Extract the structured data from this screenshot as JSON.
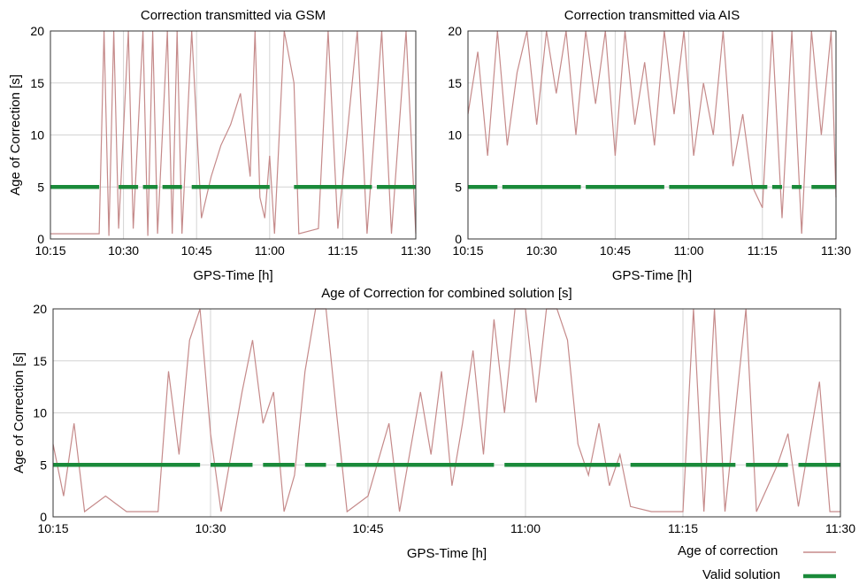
{
  "chart_data": [
    {
      "id": "gsm",
      "type": "line",
      "title": "Correction transmitted via GSM",
      "xlabel": "GPS-Time [h]",
      "ylabel": "Age of Correction [s]",
      "xticks": [
        "10:15",
        "10:30",
        "10:45",
        "11:00",
        "11:15",
        "11:30"
      ],
      "yticks": [
        0,
        5,
        10,
        15,
        20
      ],
      "ylim": [
        0,
        20
      ],
      "xlim": [
        "10:15",
        "11:30"
      ],
      "grid": true,
      "series": [
        {
          "name": "Age of correction",
          "color": "#c58a8a",
          "points": [
            [
              "10:15",
              0.5
            ],
            [
              "10:20",
              0.5
            ],
            [
              "10:25",
              0.5
            ],
            [
              "10:26",
              20
            ],
            [
              "10:27",
              0.3
            ],
            [
              "10:28",
              20
            ],
            [
              "10:29",
              1
            ],
            [
              "10:31",
              20
            ],
            [
              "10:32",
              1
            ],
            [
              "10:34",
              20
            ],
            [
              "10:35",
              0.3
            ],
            [
              "10:36",
              20
            ],
            [
              "10:37",
              0.5
            ],
            [
              "10:39",
              20
            ],
            [
              "10:40",
              0.5
            ],
            [
              "10:41",
              20
            ],
            [
              "10:42",
              0.5
            ],
            [
              "10:44",
              20
            ],
            [
              "10:46",
              2
            ],
            [
              "10:48",
              6
            ],
            [
              "10:50",
              9
            ],
            [
              "10:52",
              11
            ],
            [
              "10:54",
              14
            ],
            [
              "10:55",
              10
            ],
            [
              "10:56",
              6
            ],
            [
              "10:57",
              20
            ],
            [
              "10:58",
              4
            ],
            [
              "10:59",
              2
            ],
            [
              "11:00",
              8
            ],
            [
              "11:01",
              0.5
            ],
            [
              "11:03",
              20
            ],
            [
              "11:05",
              15
            ],
            [
              "11:06",
              0.5
            ],
            [
              "11:10",
              1
            ],
            [
              "11:12",
              20
            ],
            [
              "11:14",
              1
            ],
            [
              "11:18",
              20
            ],
            [
              "11:20",
              0.5
            ],
            [
              "11:23",
              20
            ],
            [
              "11:25",
              0.5
            ],
            [
              "11:28",
              20
            ],
            [
              "11:30",
              0.5
            ]
          ]
        },
        {
          "name": "Valid solution",
          "color": "#1a8a3a",
          "value": 5,
          "valid_ranges": [
            [
              "10:15",
              "10:25"
            ],
            [
              "10:29",
              "10:33"
            ],
            [
              "10:34",
              "10:37"
            ],
            [
              "10:38",
              "10:42"
            ],
            [
              "10:44",
              "11:00"
            ],
            [
              "11:05",
              "11:21"
            ],
            [
              "11:22",
              "11:30"
            ]
          ]
        }
      ]
    },
    {
      "id": "ais",
      "type": "line",
      "title": "Correction transmitted via AIS",
      "xlabel": "GPS-Time [h]",
      "ylabel": "",
      "xticks": [
        "10:15",
        "10:30",
        "10:45",
        "11:00",
        "11:15",
        "11:30"
      ],
      "yticks": [
        0,
        5,
        10,
        15,
        20
      ],
      "ylim": [
        0,
        20
      ],
      "xlim": [
        "10:15",
        "11:30"
      ],
      "grid": true,
      "series": [
        {
          "name": "Age of correction",
          "color": "#c58a8a",
          "points": [
            [
              "10:15",
              12
            ],
            [
              "10:17",
              18
            ],
            [
              "10:19",
              8
            ],
            [
              "10:21",
              20
            ],
            [
              "10:23",
              9
            ],
            [
              "10:25",
              16
            ],
            [
              "10:27",
              20
            ],
            [
              "10:29",
              11
            ],
            [
              "10:31",
              20
            ],
            [
              "10:33",
              14
            ],
            [
              "10:35",
              20
            ],
            [
              "10:37",
              10
            ],
            [
              "10:39",
              20
            ],
            [
              "10:41",
              13
            ],
            [
              "10:43",
              20
            ],
            [
              "10:45",
              8
            ],
            [
              "10:47",
              20
            ],
            [
              "10:49",
              11
            ],
            [
              "10:51",
              17
            ],
            [
              "10:53",
              9
            ],
            [
              "10:55",
              20
            ],
            [
              "10:57",
              12
            ],
            [
              "10:59",
              20
            ],
            [
              "11:01",
              8
            ],
            [
              "11:03",
              15
            ],
            [
              "11:05",
              10
            ],
            [
              "11:07",
              20
            ],
            [
              "11:09",
              7
            ],
            [
              "11:11",
              12
            ],
            [
              "11:13",
              5
            ],
            [
              "11:15",
              3
            ],
            [
              "11:17",
              20
            ],
            [
              "11:19",
              2
            ],
            [
              "11:21",
              20
            ],
            [
              "11:23",
              0.5
            ],
            [
              "11:25",
              20
            ],
            [
              "11:27",
              10
            ],
            [
              "11:29",
              20
            ],
            [
              "11:30",
              4
            ]
          ]
        },
        {
          "name": "Valid solution",
          "color": "#1a8a3a",
          "value": 5,
          "valid_ranges": [
            [
              "10:15",
              "10:21"
            ],
            [
              "10:22",
              "10:38"
            ],
            [
              "10:39",
              "10:55"
            ],
            [
              "10:56",
              "11:16"
            ],
            [
              "11:17",
              "11:19"
            ],
            [
              "11:21",
              "11:23"
            ],
            [
              "11:25",
              "11:30"
            ]
          ]
        }
      ]
    },
    {
      "id": "combined",
      "type": "line",
      "title": "Age of Correction for combined solution [s]",
      "xlabel": "GPS-Time [h]",
      "ylabel": "Age of Correction [s]",
      "xticks": [
        "10:15",
        "10:30",
        "10:45",
        "11:00",
        "11:15",
        "11:30"
      ],
      "yticks": [
        0,
        5,
        10,
        15,
        20
      ],
      "ylim": [
        0,
        20
      ],
      "xlim": [
        "10:15",
        "11:30"
      ],
      "grid": true,
      "series": [
        {
          "name": "Age of correction",
          "color": "#c58a8a",
          "points": [
            [
              "10:15",
              7
            ],
            [
              "10:16",
              2
            ],
            [
              "10:17",
              9
            ],
            [
              "10:18",
              0.5
            ],
            [
              "10:20",
              2
            ],
            [
              "10:22",
              0.5
            ],
            [
              "10:25",
              0.5
            ],
            [
              "10:26",
              14
            ],
            [
              "10:27",
              6
            ],
            [
              "10:28",
              17
            ],
            [
              "10:29",
              20
            ],
            [
              "10:30",
              8
            ],
            [
              "10:31",
              0.5
            ],
            [
              "10:33",
              12
            ],
            [
              "10:34",
              17
            ],
            [
              "10:35",
              9
            ],
            [
              "10:36",
              12
            ],
            [
              "10:37",
              0.5
            ],
            [
              "10:38",
              4
            ],
            [
              "10:39",
              14
            ],
            [
              "10:40",
              20
            ],
            [
              "10:41",
              20
            ],
            [
              "10:42",
              10
            ],
            [
              "10:43",
              0.5
            ],
            [
              "10:45",
              2
            ],
            [
              "10:47",
              9
            ],
            [
              "10:48",
              0.5
            ],
            [
              "10:50",
              12
            ],
            [
              "10:51",
              6
            ],
            [
              "10:52",
              14
            ],
            [
              "10:53",
              3
            ],
            [
              "10:54",
              9
            ],
            [
              "10:55",
              16
            ],
            [
              "10:56",
              6
            ],
            [
              "10:57",
              19
            ],
            [
              "10:58",
              10
            ],
            [
              "10:59",
              20
            ],
            [
              "11:00",
              20
            ],
            [
              "11:01",
              11
            ],
            [
              "11:02",
              20
            ],
            [
              "11:03",
              20
            ],
            [
              "11:04",
              17
            ],
            [
              "11:05",
              7
            ],
            [
              "11:06",
              4
            ],
            [
              "11:07",
              9
            ],
            [
              "11:08",
              3
            ],
            [
              "11:09",
              6
            ],
            [
              "11:10",
              1
            ],
            [
              "11:12",
              0.5
            ],
            [
              "11:15",
              0.5
            ],
            [
              "11:16",
              20
            ],
            [
              "11:17",
              0.5
            ],
            [
              "11:18",
              20
            ],
            [
              "11:19",
              0.5
            ],
            [
              "11:21",
              20
            ],
            [
              "11:22",
              0.5
            ],
            [
              "11:24",
              5
            ],
            [
              "11:25",
              8
            ],
            [
              "11:26",
              1
            ],
            [
              "11:28",
              13
            ],
            [
              "11:29",
              0.5
            ],
            [
              "11:30",
              0.5
            ]
          ]
        },
        {
          "name": "Valid solution",
          "color": "#1a8a3a",
          "value": 5,
          "valid_ranges": [
            [
              "10:15",
              "10:29"
            ],
            [
              "10:30",
              "10:34"
            ],
            [
              "10:35",
              "10:38"
            ],
            [
              "10:39",
              "10:41"
            ],
            [
              "10:42",
              "10:57"
            ],
            [
              "10:58",
              "11:09"
            ],
            [
              "11:10",
              "11:20"
            ],
            [
              "11:21",
              "11:25"
            ],
            [
              "11:26",
              "11:30"
            ]
          ]
        }
      ]
    }
  ],
  "legend": {
    "items": [
      {
        "label": "Age of correction",
        "color": "#c58a8a"
      },
      {
        "label": "Valid solution",
        "color": "#1a8a3a"
      }
    ]
  }
}
